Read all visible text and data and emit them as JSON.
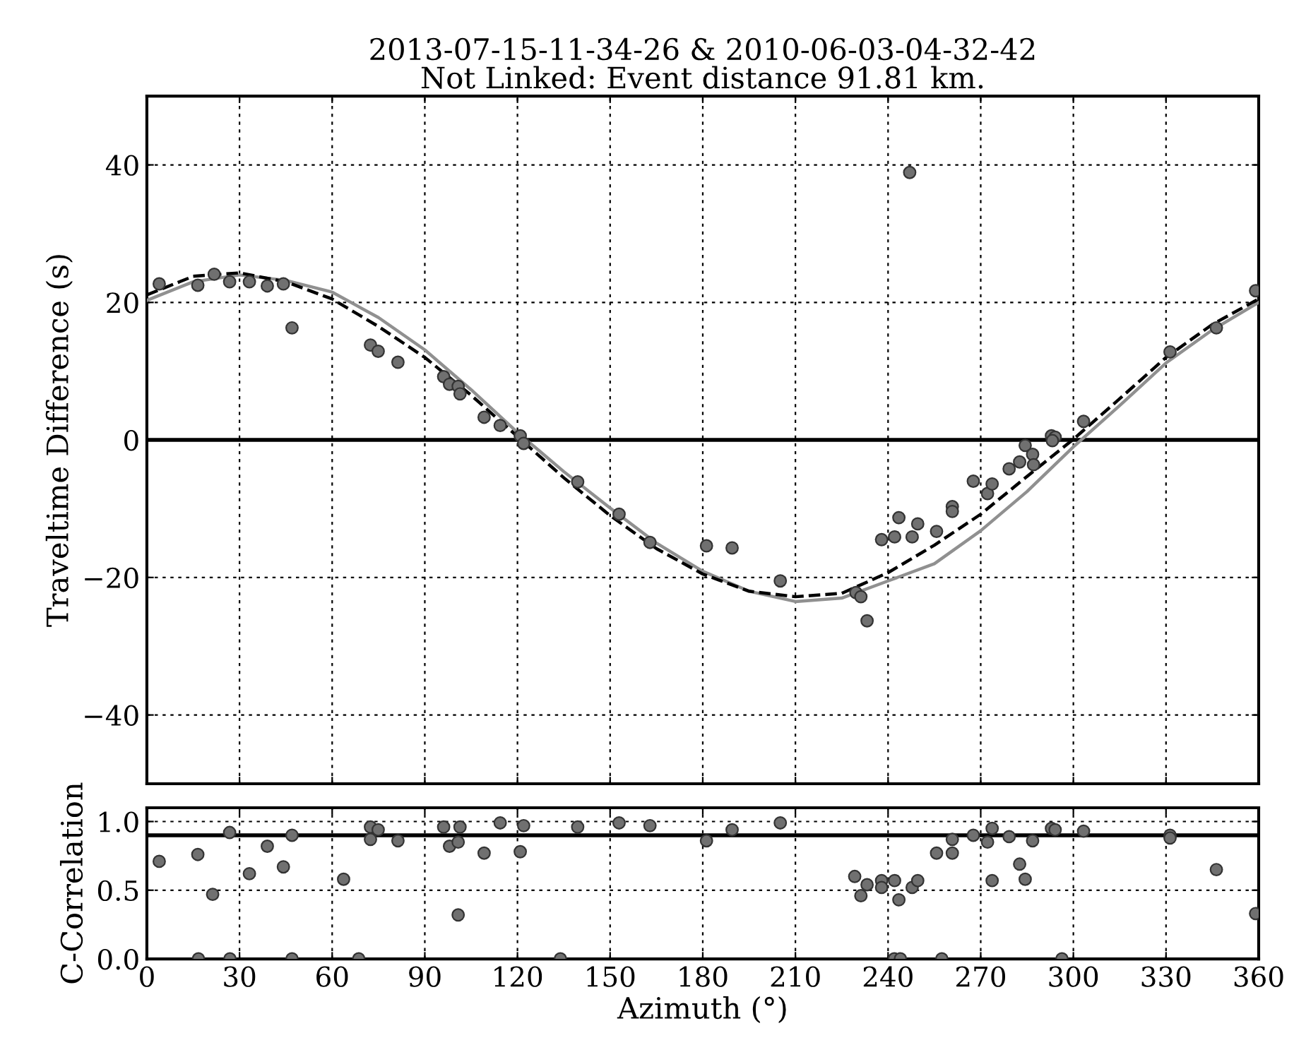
{
  "chart_data": [
    {
      "type": "scatter",
      "title": "2013-07-15-11-34-26 & 2010-06-03-04-32-42\nNot Linked: Event distance 91.81 km.",
      "ylabel": "Traveltime Difference (s)",
      "xlim": [
        0,
        360
      ],
      "xticks": [
        0,
        30,
        60,
        90,
        120,
        150,
        180,
        210,
        240,
        270,
        300,
        330,
        360
      ],
      "ylim": [
        -50,
        50
      ],
      "yticks": [
        {
          "value": -40,
          "label": "−40"
        },
        {
          "value": -20,
          "label": "−20"
        },
        0,
        20,
        40
      ],
      "tick_labels": "y",
      "grid": true,
      "legend": false,
      "ref_lines": [
        {
          "axis": "y",
          "value": 0,
          "color": "#000000",
          "line_style": "solid"
        }
      ],
      "series": [
        {
          "color": "#707070",
          "marker": "circle",
          "x": [
            4.0,
            16.5,
            21.8,
            26.8,
            33.2,
            39.0,
            44.2,
            47.0,
            72.4,
            74.9,
            81.3,
            96.1,
            98.0,
            100.8,
            101.4,
            109.2,
            114.4,
            120.9,
            122.0,
            139.5,
            152.9,
            162.9,
            181.2,
            189.5,
            205.1,
            229.6,
            231.2,
            233.2,
            237.9,
            242.1,
            243.5,
            247.0,
            247.8,
            249.6,
            255.7,
            260.8,
            260.8,
            267.6,
            272.2,
            273.7,
            279.2,
            282.6,
            284.4,
            286.8,
            287.1,
            292.9,
            294.1,
            293.2,
            303.3,
            331.3,
            346.3,
            359.0
          ],
          "values": [
            22.7,
            22.5,
            24.1,
            23.0,
            23.0,
            22.4,
            22.7,
            16.3,
            13.8,
            12.9,
            11.3,
            9.2,
            8.1,
            7.8,
            6.7,
            3.3,
            2.1,
            0.6,
            -0.5,
            -6.1,
            -10.8,
            -14.9,
            -15.4,
            -15.7,
            -20.5,
            -22.2,
            -22.8,
            -26.3,
            -14.5,
            -14.1,
            -11.3,
            38.9,
            -14.1,
            -12.2,
            -13.3,
            -9.7,
            -10.4,
            -6.0,
            -7.8,
            -6.4,
            -4.2,
            -3.2,
            -0.8,
            -2.1,
            -3.6,
            0.6,
            0.4,
            -0.1,
            2.7,
            12.8,
            16.3,
            21.7
          ]
        },
        {
          "type": "line",
          "color": "#909090",
          "line_style": "solid",
          "marker": "none",
          "x": [
            0,
            15,
            30,
            45,
            60,
            75,
            90,
            105,
            120,
            135,
            150,
            165,
            180,
            195,
            210,
            225,
            240,
            255,
            270,
            285,
            300,
            315,
            330,
            345,
            360
          ],
          "values": [
            20.3,
            23.0,
            24.0,
            23.2,
            21.5,
            17.8,
            13.1,
            7.3,
            1.1,
            -4.6,
            -9.9,
            -15.0,
            -19.1,
            -22.0,
            -23.5,
            -23.0,
            -20.5,
            -18.0,
            -13.2,
            -7.5,
            -1.0,
            5.0,
            11.2,
            16.0,
            20.0
          ]
        },
        {
          "type": "line",
          "color": "#000000",
          "line_style": "dashed",
          "marker": "none",
          "x": [
            0,
            15,
            30,
            45,
            60,
            75,
            90,
            105,
            120,
            135,
            150,
            165,
            180,
            195,
            210,
            225,
            240,
            255,
            270,
            285,
            300,
            315,
            330,
            345,
            360
          ],
          "values": [
            21.1,
            23.8,
            24.3,
            23.0,
            20.5,
            16.5,
            12.0,
            6.5,
            0.5,
            -5.5,
            -11.0,
            -15.8,
            -19.5,
            -22.0,
            -22.8,
            -22.3,
            -19.3,
            -15.3,
            -10.8,
            -5.3,
            0.1,
            6.0,
            12.0,
            16.8,
            20.5
          ]
        }
      ]
    },
    {
      "type": "scatter",
      "xlabel": "Azimuth (°)",
      "ylabel": "C-Correlation",
      "xlim": [
        0,
        360
      ],
      "xticks": [
        0,
        30,
        60,
        90,
        120,
        150,
        180,
        210,
        240,
        270,
        300,
        330,
        360
      ],
      "ylim": [
        0,
        1.1
      ],
      "yticks": [
        {
          "value": 0,
          "label": "0.0"
        },
        {
          "value": 0.5,
          "label": "0.5"
        },
        {
          "value": 1,
          "label": "1.0"
        }
      ],
      "grid": true,
      "legend": false,
      "ref_lines": [
        {
          "axis": "y",
          "value": 0.9,
          "color": "#000000",
          "line_style": "solid"
        }
      ],
      "series": [
        {
          "color": "#707070",
          "marker": "circle",
          "x": [
            4.0,
            16.5,
            21.3,
            26.8,
            33.2,
            39.0,
            44.2,
            47.0,
            63.7,
            72.4,
            72.4,
            74.9,
            81.3,
            96.1,
            98.0,
            100.8,
            101.4,
            100.8,
            109.2,
            114.4,
            120.9,
            122.0,
            139.5,
            152.9,
            162.9,
            181.2,
            189.5,
            205.1,
            229.2,
            231.2,
            233.2,
            237.9,
            237.9,
            242.1,
            243.5,
            247.8,
            249.6,
            255.7,
            260.8,
            260.8,
            267.6,
            272.2,
            273.7,
            273.7,
            279.2,
            282.6,
            284.4,
            286.8,
            292.9,
            294.1,
            303.3,
            331.3,
            331.3,
            346.3,
            359.0,
            16.7,
            26.9,
            47.0,
            68.6,
            133.9,
            242.0,
            244.0,
            257.4,
            296.3
          ],
          "values": [
            0.71,
            0.76,
            0.47,
            0.92,
            0.62,
            0.82,
            0.67,
            0.9,
            0.58,
            0.96,
            0.87,
            0.94,
            0.86,
            0.96,
            0.82,
            0.85,
            0.96,
            0.32,
            0.77,
            0.99,
            0.78,
            0.97,
            0.96,
            0.99,
            0.97,
            0.86,
            0.94,
            0.99,
            0.6,
            0.46,
            0.54,
            0.57,
            0.52,
            0.57,
            0.43,
            0.52,
            0.57,
            0.77,
            0.87,
            0.77,
            0.9,
            0.85,
            0.95,
            0.57,
            0.89,
            0.69,
            0.58,
            0.86,
            0.95,
            0.94,
            0.93,
            0.9,
            0.88,
            0.65,
            0.33,
            0,
            0,
            0,
            0,
            0,
            0,
            0,
            0,
            0
          ]
        }
      ]
    }
  ]
}
